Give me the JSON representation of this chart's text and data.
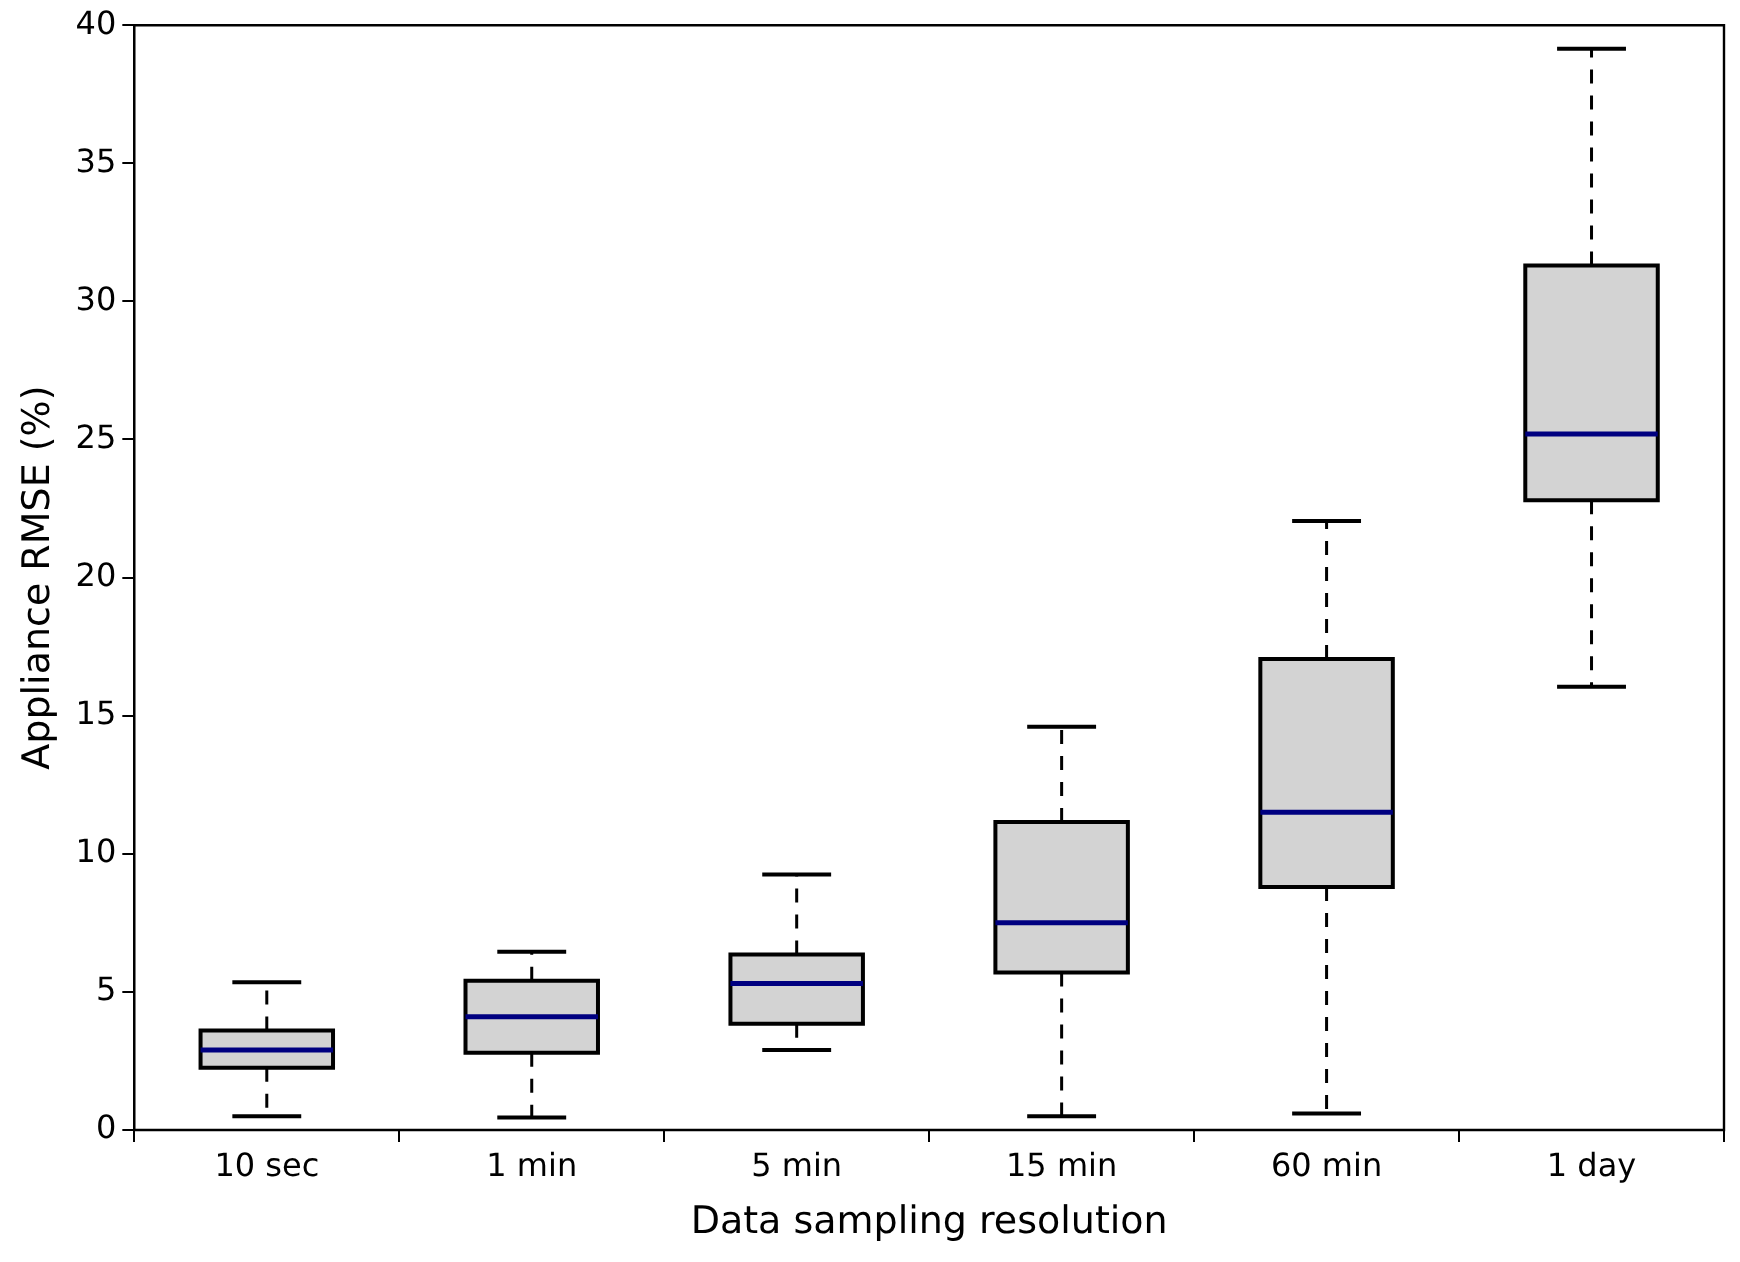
{
  "chart_data": {
    "type": "box",
    "xlabel": "Data sampling resolution",
    "ylabel": "Appliance RMSE (%)",
    "categories": [
      "10 sec",
      "1 min",
      "5 min",
      "15 min",
      "60 min",
      "1 day"
    ],
    "color": "#d3d3d3",
    "boxes": [
      {
        "low": 0.5,
        "q1": 2.25,
        "median": 2.9,
        "q3": 3.6,
        "high": 5.35
      },
      {
        "low": 0.45,
        "q1": 2.8,
        "median": 4.1,
        "q3": 5.4,
        "high": 6.45
      },
      {
        "low": 2.9,
        "q1": 3.85,
        "median": 5.3,
        "q3": 6.35,
        "high": 9.25
      },
      {
        "low": 0.5,
        "q1": 5.7,
        "median": 7.5,
        "q3": 11.15,
        "high": 14.6
      },
      {
        "low": 0.6,
        "q1": 8.8,
        "median": 11.5,
        "q3": 17.05,
        "high": 22.05
      },
      {
        "low": 16.05,
        "q1": 22.8,
        "median": 25.2,
        "q3": 31.3,
        "high": 39.15
      }
    ],
    "ylim": [
      0,
      40
    ],
    "yticks": [
      0,
      5,
      10,
      15,
      20,
      25,
      30,
      35,
      40
    ],
    "grid": false,
    "legend": false
  }
}
